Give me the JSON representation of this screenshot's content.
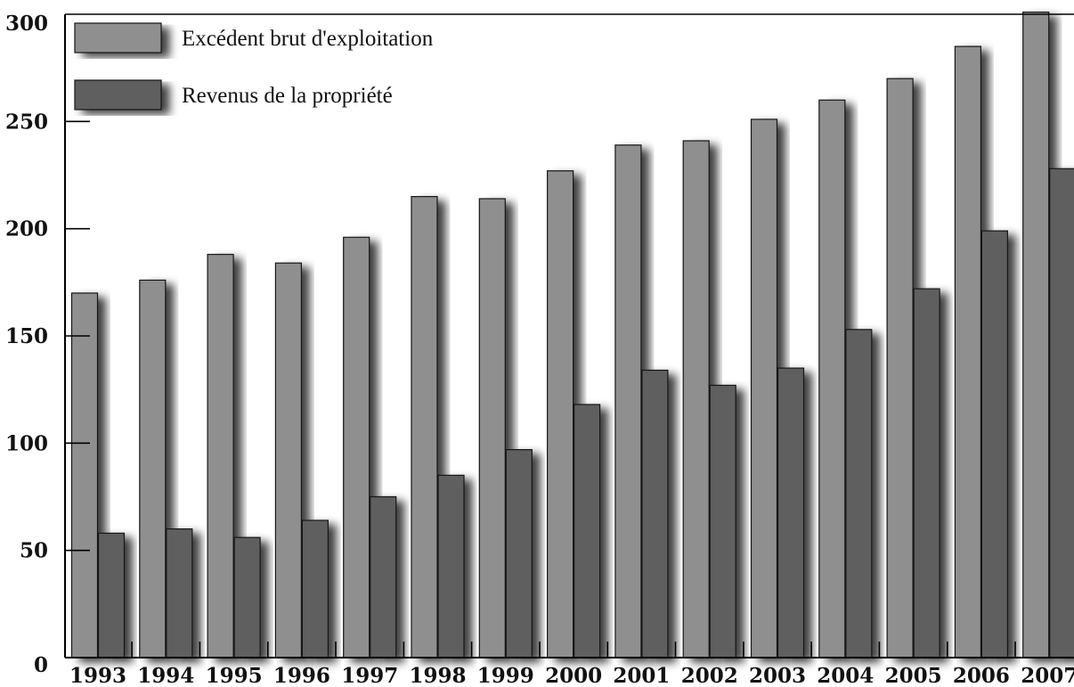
{
  "chart_data": {
    "type": "bar",
    "categories": [
      "1993",
      "1994",
      "1995",
      "1996",
      "1997",
      "1998",
      "1999",
      "2000",
      "2001",
      "2002",
      "2003",
      "2004",
      "2005",
      "2006",
      "2007"
    ],
    "series": [
      {
        "name": "Excédent brut d'exploitation",
        "color": "#8f8f8f",
        "values": [
          170,
          176,
          188,
          184,
          196,
          215,
          214,
          227,
          239,
          241,
          251,
          260,
          270,
          285,
          301
        ]
      },
      {
        "name": "Revenus de la propriété",
        "color": "#5f5f5f",
        "values": [
          58,
          60,
          56,
          64,
          75,
          85,
          97,
          118,
          134,
          127,
          135,
          153,
          172,
          199,
          228
        ]
      }
    ],
    "y_ticks": [
      "0",
      "50",
      "100",
      "150",
      "200",
      "250",
      "300"
    ],
    "ylim": [
      0,
      300
    ],
    "title": "",
    "xlabel": "",
    "ylabel": "",
    "grid": false,
    "legend_position": "top-left"
  }
}
